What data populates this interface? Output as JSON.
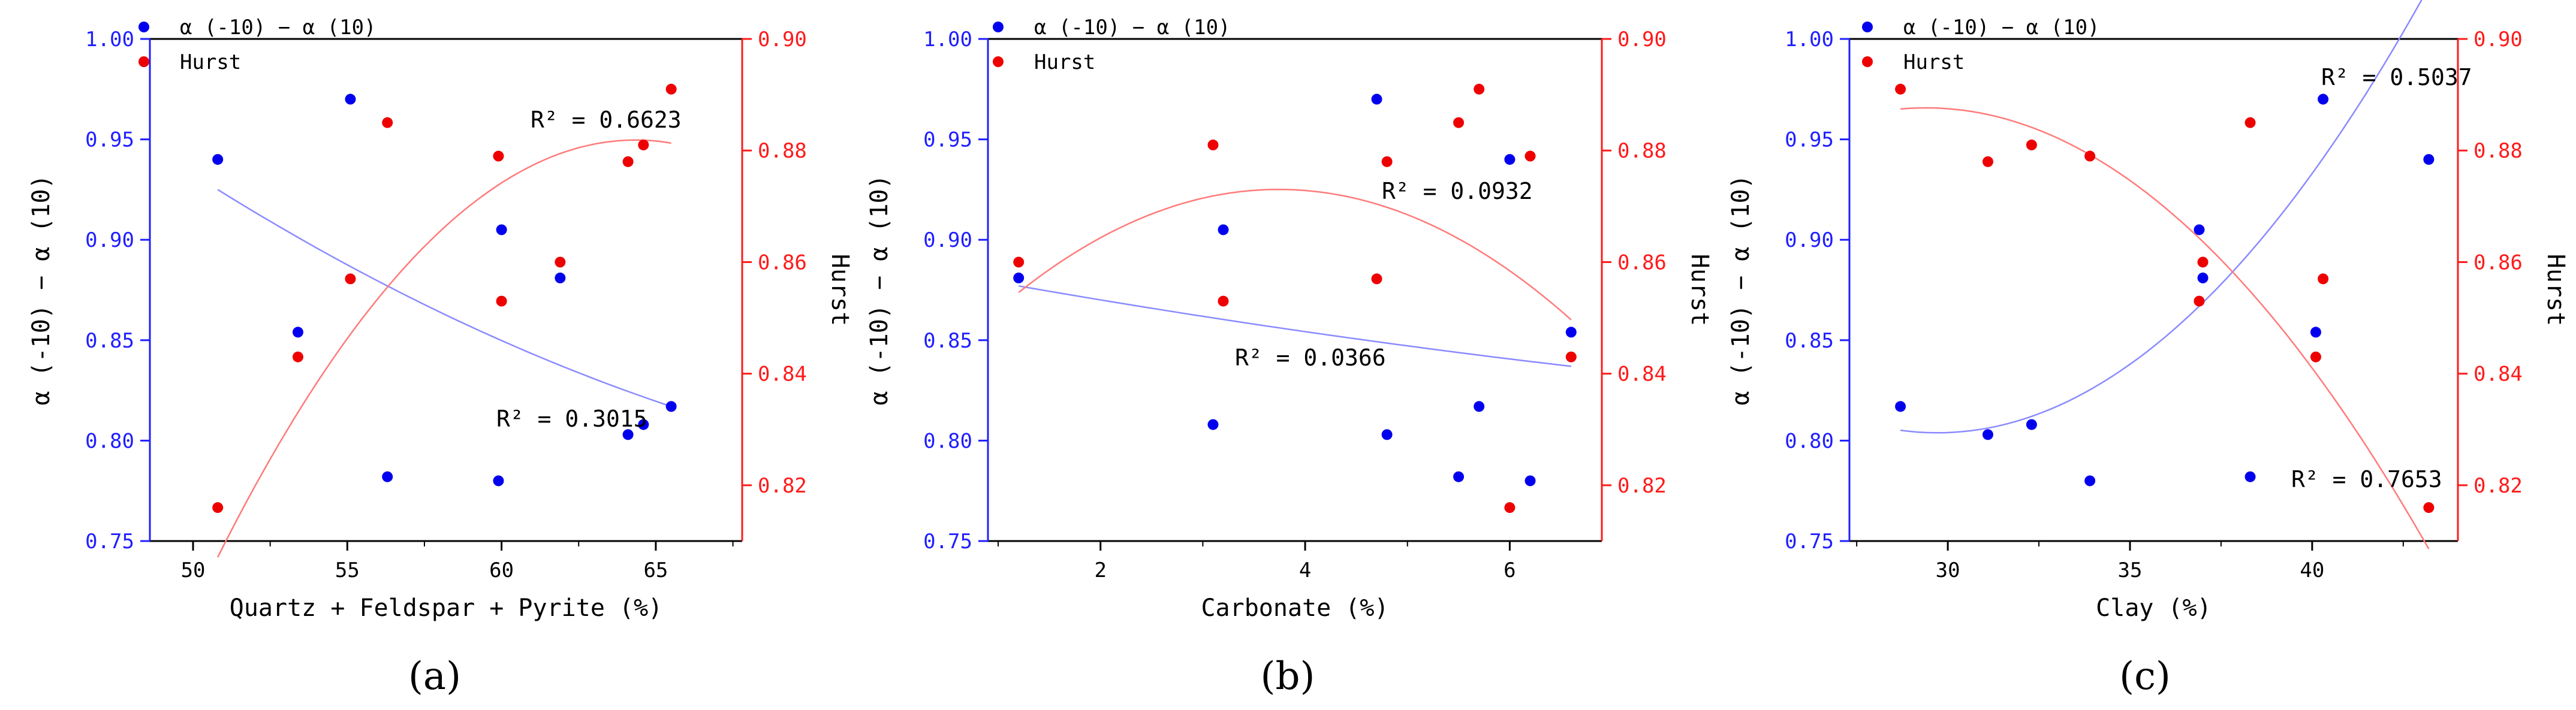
{
  "figure": {
    "panel_labels": [
      "(a)",
      "(b)",
      "(c)"
    ]
  },
  "colors": {
    "left_axis": "#1f1fff",
    "right_axis": "#ff1a1a",
    "alpha_series": "#0000ee",
    "hurst_series": "#ee0000",
    "alpha_fit": "#8a8aff",
    "hurst_fit": "#ff7a7a",
    "frame": "#000000"
  },
  "chart_data": [
    {
      "type": "scatter",
      "xlabel": "Quartz + Feldspar + Pyrite (%)",
      "ylabel_left": "α (-10) − α (10)",
      "ylabel_right": "Hurst",
      "legend": [
        "α (-10) − α (10)",
        "Hurst"
      ],
      "xlim": [
        48.6,
        67.8
      ],
      "xticks": [
        50,
        55,
        60,
        65
      ],
      "ylim_left": [
        0.75,
        1.0
      ],
      "yticks_left": [
        "0.75",
        "0.80",
        "0.85",
        "0.90",
        "0.95",
        "1.00"
      ],
      "ylim_right": [
        0.81,
        0.9
      ],
      "yticks_right": [
        "0.82",
        "0.84",
        "0.86",
        "0.88",
        "0.90"
      ],
      "series": [
        {
          "name": "α (-10) − α (10)",
          "axis": "left",
          "x": [
            50.8,
            53.4,
            55.1,
            56.3,
            59.9,
            60.0,
            61.9,
            64.1,
            64.6,
            65.5
          ],
          "y": [
            0.94,
            0.854,
            0.97,
            0.782,
            0.78,
            0.905,
            0.881,
            0.803,
            0.808,
            0.817
          ],
          "fit": {
            "x": [
              50.8,
              65.5
            ],
            "y": [
              0.925,
              0.817
            ],
            "curvature": 0.3
          },
          "r2_label": "R² = 0.3015",
          "r2_superscript_text": "R2 = 0.3015"
        },
        {
          "name": "Hurst",
          "axis": "right",
          "x": [
            50.8,
            53.4,
            55.1,
            56.3,
            59.9,
            60.0,
            61.9,
            64.1,
            64.6,
            65.5
          ],
          "y": [
            0.816,
            0.843,
            0.857,
            0.885,
            0.879,
            0.853,
            0.86,
            0.878,
            0.881,
            0.891
          ],
          "fit": {
            "a": -0.000408,
            "b": 0.0525,
            "c": -0.807
          },
          "r2_label": "R² = 0.6623"
        }
      ]
    },
    {
      "type": "scatter",
      "xlabel": "Carbonate (%)",
      "ylabel_left": "α (-10) − α (10)",
      "ylabel_right": "Hurst",
      "legend": [
        "α (-10) − α (10)",
        "Hurst"
      ],
      "xlim": [
        0.9,
        6.9
      ],
      "xticks": [
        2,
        4,
        6
      ],
      "ylim_left": [
        0.75,
        1.0
      ],
      "yticks_left": [
        "0.75",
        "0.80",
        "0.85",
        "0.90",
        "0.95",
        "1.00"
      ],
      "ylim_right": [
        0.81,
        0.9
      ],
      "yticks_right": [
        "0.82",
        "0.84",
        "0.86",
        "0.88",
        "0.90"
      ],
      "series": [
        {
          "name": "α (-10) − α (10)",
          "axis": "left",
          "x": [
            1.2,
            3.1,
            3.2,
            4.7,
            4.8,
            5.5,
            5.7,
            6.0,
            6.2,
            6.6
          ],
          "y": [
            0.881,
            0.808,
            0.905,
            0.97,
            0.803,
            0.782,
            0.817,
            0.94,
            0.78,
            0.854
          ],
          "fit": {
            "x": [
              1.2,
              6.6
            ],
            "y": [
              0.877,
              0.837
            ],
            "curvature": 0.2
          },
          "r2_label": "R² = 0.0366"
        },
        {
          "name": "Hurst",
          "axis": "right",
          "x": [
            1.2,
            3.1,
            3.2,
            4.7,
            4.8,
            5.5,
            5.7,
            6.0,
            6.2,
            6.6
          ],
          "y": [
            0.86,
            0.881,
            0.853,
            0.857,
            0.878,
            0.885,
            0.891,
            0.816,
            0.879,
            0.843
          ],
          "fit": {
            "a": -0.00286,
            "b": 0.0214,
            "c": 0.833
          },
          "r2_label": "R² = 0.0932"
        }
      ]
    },
    {
      "type": "scatter",
      "xlabel": "Clay (%)",
      "ylabel_left": "α (-10) − α (10)",
      "ylabel_right": "Hurst",
      "legend": [
        "α (-10) − α (10)",
        "Hurst"
      ],
      "xlim": [
        27.3,
        44.0
      ],
      "xticks": [
        30,
        35,
        40
      ],
      "ylim_left": [
        0.75,
        1.0
      ],
      "yticks_left": [
        "0.75",
        "0.80",
        "0.85",
        "0.90",
        "0.95",
        "1.00"
      ],
      "ylim_right": [
        0.81,
        0.9
      ],
      "yticks_right": [
        "0.82",
        "0.84",
        "0.86",
        "0.88",
        "0.90"
      ],
      "series": [
        {
          "name": "α (-10) − α (10)",
          "axis": "left",
          "x": [
            28.7,
            31.1,
            32.3,
            33.9,
            36.9,
            37.0,
            38.3,
            40.1,
            40.3,
            43.2
          ],
          "y": [
            0.817,
            0.803,
            0.808,
            0.78,
            0.905,
            0.881,
            0.782,
            0.854,
            0.97,
            0.94
          ],
          "fit": {
            "a": 0.00122,
            "b": -0.0725,
            "c": 1.881
          },
          "r2_label": "R² = 0.5037"
        },
        {
          "name": "Hurst",
          "axis": "right",
          "x": [
            28.7,
            31.1,
            32.3,
            33.9,
            36.9,
            37.0,
            38.3,
            40.1,
            40.3,
            43.2
          ],
          "y": [
            0.891,
            0.878,
            0.881,
            0.879,
            0.853,
            0.86,
            0.885,
            0.843,
            0.857,
            0.816
          ],
          "fit": {
            "a": -0.000415,
            "b": 0.0244,
            "c": 0.529
          },
          "r2_label": "R² = 0.7653"
        }
      ]
    }
  ]
}
